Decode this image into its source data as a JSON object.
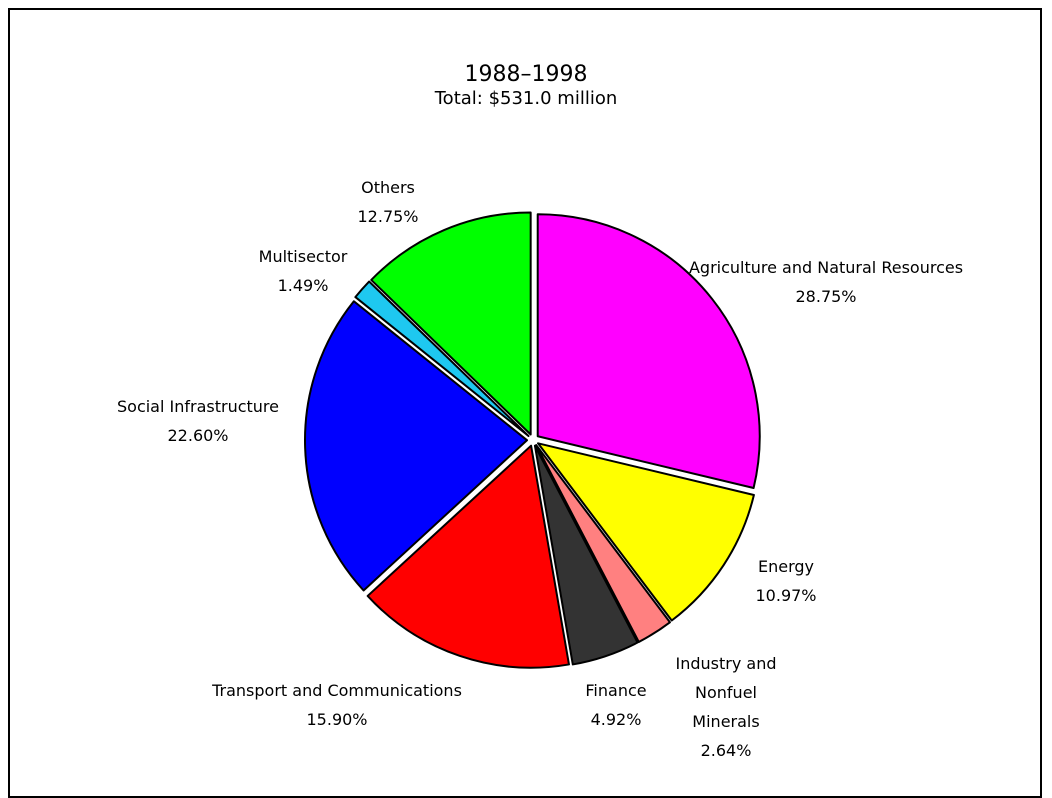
{
  "chart_data": {
    "type": "pie",
    "title": "1988–1998",
    "subtitle": "Total: $531.0 million",
    "categories": [
      "Agriculture and Natural Resources",
      "Energy",
      "Industry and Nonfuel Minerals",
      "Finance",
      "Transport and Communications",
      "Social Infrastructure",
      "Multisector",
      "Others"
    ],
    "values": [
      28.75,
      10.97,
      2.64,
      4.92,
      15.9,
      22.6,
      1.49,
      12.75
    ],
    "value_labels": [
      "28.75%",
      "10.97%",
      "2.64%",
      "4.92%",
      "15.90%",
      "22.60%",
      "1.49%",
      "12.75%"
    ],
    "colors": [
      "#ff00ff",
      "#ffff00",
      "#ff8080",
      "#333333",
      "#ff0000",
      "#0000ff",
      "#1ec8f0",
      "#00ff00"
    ]
  }
}
